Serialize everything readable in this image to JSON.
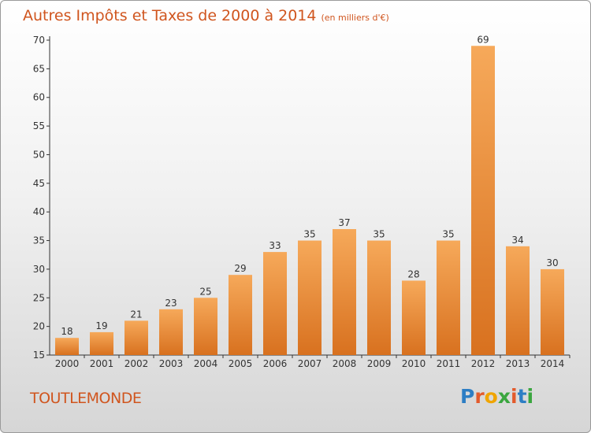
{
  "header": {
    "title": "Autres Impôts et Taxes de 2000 à 2014",
    "unit": "(en milliers d'€)"
  },
  "commune": "TOUTLEMONDE",
  "logo": {
    "letters": [
      "P",
      "r",
      "o",
      "x",
      "i",
      "t",
      "i"
    ]
  },
  "colors": {
    "title": "#d0551e",
    "bar_top": "#f6a95a",
    "bar_bottom": "#d8711f",
    "axis": "#333333"
  },
  "chart_data": {
    "type": "bar",
    "categories": [
      "2000",
      "2001",
      "2002",
      "2003",
      "2004",
      "2005",
      "2006",
      "2007",
      "2008",
      "2009",
      "2010",
      "2011",
      "2012",
      "2013",
      "2014"
    ],
    "values": [
      18,
      19,
      21,
      23,
      25,
      29,
      33,
      35,
      37,
      35,
      28,
      35,
      69,
      34,
      30
    ],
    "title": "Autres Impôts et Taxes de 2000 à 2014",
    "xlabel": "",
    "ylabel": "",
    "ylim": [
      15,
      70
    ],
    "yticks": [
      15,
      20,
      25,
      30,
      35,
      40,
      45,
      50,
      55,
      60,
      65,
      70
    ],
    "grid": false,
    "legend": "none",
    "data_labels": true
  }
}
